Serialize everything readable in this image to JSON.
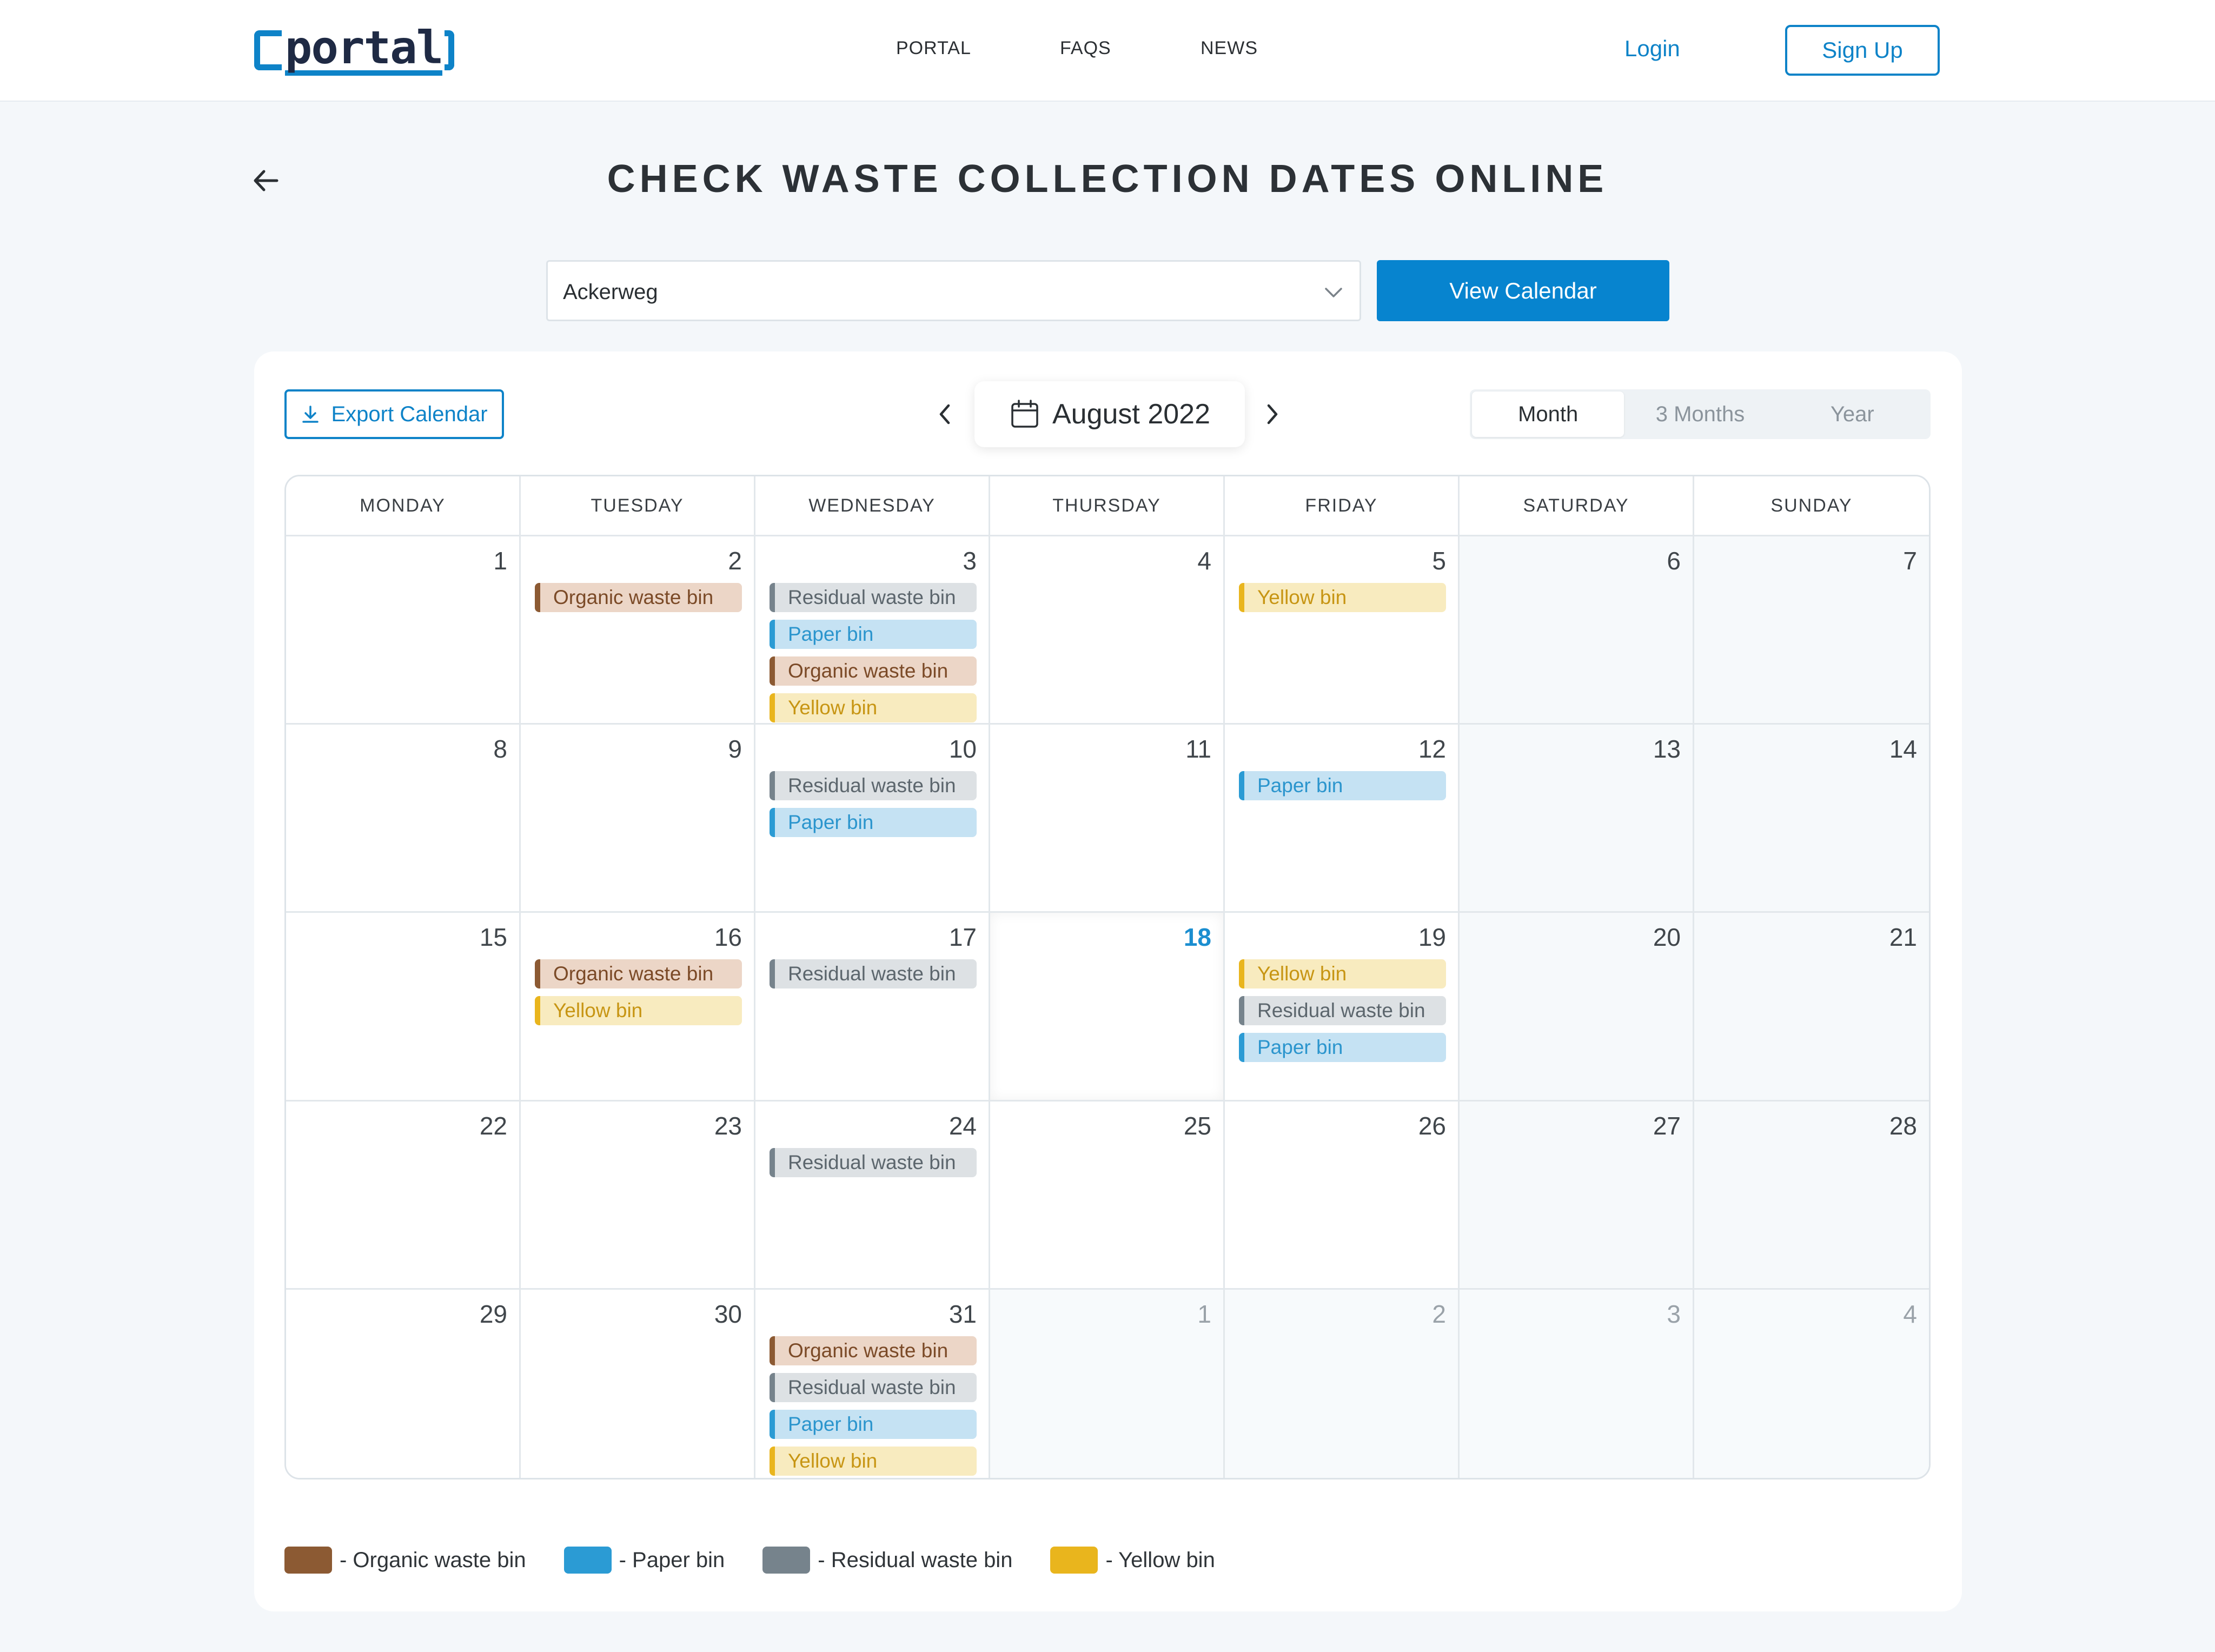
{
  "header": {
    "logo_text": "portal",
    "nav": [
      "PORTAL",
      "FAQS",
      "NEWS"
    ],
    "login": "Login",
    "signup": "Sign Up"
  },
  "page": {
    "title": "CHECK WASTE COLLECTION DATES ONLINE"
  },
  "street_select": {
    "value": "Ackerweg",
    "button": "View Calendar"
  },
  "calendar": {
    "export_label": "Export Calendar",
    "month_label": "August 2022",
    "views": [
      "Month",
      "3 Months",
      "Year"
    ],
    "active_view": "Month",
    "weekdays": [
      "MONDAY",
      "TUESDAY",
      "WEDNESDAY",
      "THURSDAY",
      "FRIDAY",
      "SATURDAY",
      "SUNDAY"
    ],
    "today": 18,
    "days": [
      {
        "n": "1",
        "events": []
      },
      {
        "n": "2",
        "events": [
          "organic"
        ]
      },
      {
        "n": "3",
        "events": [
          "residual",
          "paper",
          "organic",
          "yellow"
        ]
      },
      {
        "n": "4",
        "events": []
      },
      {
        "n": "5",
        "events": [
          "yellow"
        ]
      },
      {
        "n": "6",
        "events": []
      },
      {
        "n": "7",
        "events": []
      },
      {
        "n": "8",
        "events": []
      },
      {
        "n": "9",
        "events": []
      },
      {
        "n": "10",
        "events": [
          "residual",
          "paper"
        ]
      },
      {
        "n": "11",
        "events": []
      },
      {
        "n": "12",
        "events": [
          "paper"
        ]
      },
      {
        "n": "13",
        "events": []
      },
      {
        "n": "14",
        "events": []
      },
      {
        "n": "15",
        "events": []
      },
      {
        "n": "16",
        "events": [
          "organic",
          "yellow"
        ]
      },
      {
        "n": "17",
        "events": [
          "residual"
        ]
      },
      {
        "n": "18",
        "events": [],
        "today": true
      },
      {
        "n": "19",
        "events": [
          "yellow",
          "residual",
          "paper"
        ]
      },
      {
        "n": "20",
        "events": []
      },
      {
        "n": "21",
        "events": []
      },
      {
        "n": "22",
        "events": []
      },
      {
        "n": "23",
        "events": []
      },
      {
        "n": "24",
        "events": [
          "residual"
        ]
      },
      {
        "n": "25",
        "events": []
      },
      {
        "n": "26",
        "events": []
      },
      {
        "n": "27",
        "events": []
      },
      {
        "n": "28",
        "events": []
      },
      {
        "n": "29",
        "events": []
      },
      {
        "n": "30",
        "events": []
      },
      {
        "n": "31",
        "events": [
          "organic",
          "residual",
          "paper",
          "yellow"
        ]
      },
      {
        "n": "1",
        "events": [],
        "other": true
      },
      {
        "n": "2",
        "events": [],
        "other": true
      },
      {
        "n": "3",
        "events": [],
        "other": true
      },
      {
        "n": "4",
        "events": [],
        "other": true
      }
    ]
  },
  "bins": {
    "organic": {
      "label": "Organic waste bin",
      "color": "#8c5a33"
    },
    "paper": {
      "label": "Paper bin",
      "color": "#2b9bd4"
    },
    "residual": {
      "label": "Residual waste bin",
      "color": "#76838c"
    },
    "yellow": {
      "label": "Yellow bin",
      "color": "#e9b51d"
    }
  },
  "legend": [
    {
      "key": "organic",
      "label": "- Organic waste bin"
    },
    {
      "key": "paper",
      "label": "- Paper bin"
    },
    {
      "key": "residual",
      "label": "- Residual waste bin"
    },
    {
      "key": "yellow",
      "label": "- Yellow bin"
    }
  ]
}
